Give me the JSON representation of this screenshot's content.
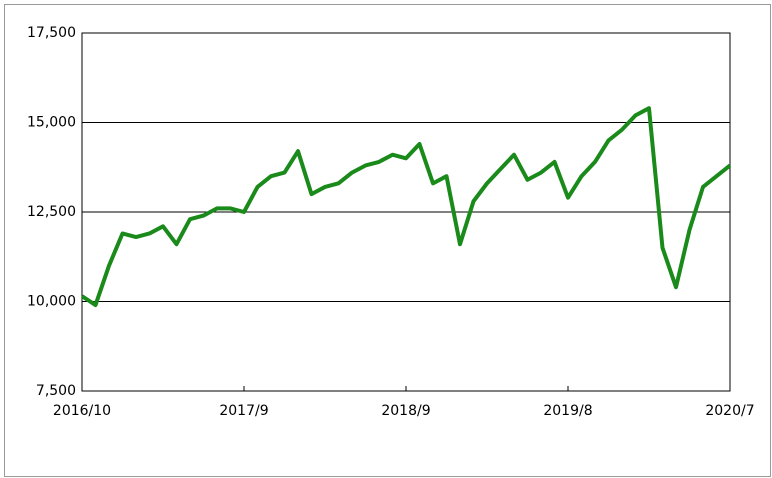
{
  "chart_data": {
    "type": "line",
    "categories": [
      "2016/10",
      null,
      null,
      null,
      null,
      null,
      null,
      null,
      null,
      null,
      null,
      null,
      "2017/9",
      null,
      null,
      null,
      null,
      null,
      null,
      null,
      null,
      null,
      null,
      null,
      "2018/9",
      null,
      null,
      null,
      null,
      null,
      null,
      null,
      null,
      null,
      null,
      null,
      "2019/8",
      null,
      null,
      null,
      null,
      null,
      null,
      null,
      null,
      null,
      null,
      null,
      "2020/7"
    ],
    "series": [
      {
        "color": "#1a8a1a",
        "values": [
          10150,
          9900,
          11000,
          11900,
          11800,
          11900,
          12100,
          11600,
          12300,
          12400,
          12600,
          12600,
          12500,
          13200,
          13500,
          13600,
          14200,
          13000,
          13200,
          13300,
          13600,
          13800,
          13900,
          14100,
          14000,
          14400,
          13300,
          13500,
          11600,
          12800,
          13300,
          13700,
          14100,
          13400,
          13600,
          13900,
          12900,
          13500,
          13900,
          14500,
          14800,
          15200,
          15400,
          11500,
          10400,
          12000,
          13200,
          13500,
          13800
        ]
      }
    ],
    "ylim": [
      7500,
      17500
    ],
    "yticks": [
      {
        "value": 7500,
        "label": "7,500"
      },
      {
        "value": 10000,
        "label": "10,000"
      },
      {
        "value": 12500,
        "label": "12,500"
      },
      {
        "value": 15000,
        "label": "15,000"
      },
      {
        "value": 17500,
        "label": "17,500"
      }
    ],
    "grid": true
  }
}
